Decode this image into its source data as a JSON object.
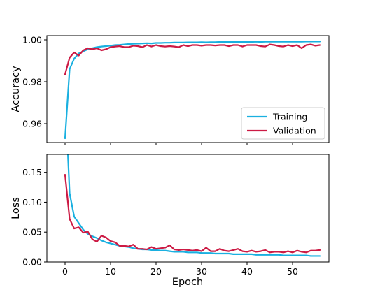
{
  "chart_data": [
    {
      "type": "line",
      "xlabel": "",
      "ylabel": "Accuracy",
      "xlim": [
        -4,
        58
      ],
      "ylim": [
        0.951,
        1.002
      ],
      "yticks": [
        0.96,
        0.98,
        1.0
      ],
      "ytick_labels": [
        "0.96",
        "0.98",
        "1.00"
      ],
      "xticks": [
        0,
        10,
        20,
        30,
        40,
        50
      ],
      "grid": false,
      "legend_position": "bottom-right",
      "legend": [
        "Training",
        "Validation"
      ],
      "series": [
        {
          "name": "Training",
          "color": "#1ab0e0",
          "x": [
            0,
            1,
            2,
            3,
            4,
            5,
            6,
            7,
            8,
            9,
            10,
            11,
            12,
            13,
            14,
            15,
            16,
            17,
            18,
            19,
            20,
            21,
            22,
            23,
            24,
            25,
            26,
            27,
            28,
            29,
            30,
            31,
            32,
            33,
            34,
            35,
            36,
            37,
            38,
            39,
            40,
            41,
            42,
            43,
            44,
            45,
            46,
            47,
            48,
            49,
            50,
            51,
            52,
            53,
            54,
            55,
            56
          ],
          "values": [
            0.953,
            0.986,
            0.991,
            0.9935,
            0.9945,
            0.9955,
            0.996,
            0.9965,
            0.9968,
            0.997,
            0.9972,
            0.9975,
            0.9976,
            0.9978,
            0.998,
            0.9981,
            0.9982,
            0.9983,
            0.9984,
            0.9983,
            0.9985,
            0.9985,
            0.9986,
            0.9986,
            0.9987,
            0.9987,
            0.9987,
            0.9988,
            0.9988,
            0.9988,
            0.9989,
            0.9988,
            0.9989,
            0.9989,
            0.999,
            0.999,
            0.999,
            0.999,
            0.999,
            0.999,
            0.999,
            0.999,
            0.9991,
            0.999,
            0.9991,
            0.9991,
            0.9991,
            0.9991,
            0.9991,
            0.9991,
            0.9991,
            0.9991,
            0.9991,
            0.9992,
            0.9992,
            0.9992,
            0.9992
          ]
        },
        {
          "name": "Validation",
          "color": "#cc1a44",
          "x": [
            0,
            1,
            2,
            3,
            4,
            5,
            6,
            7,
            8,
            9,
            10,
            11,
            12,
            13,
            14,
            15,
            16,
            17,
            18,
            19,
            20,
            21,
            22,
            23,
            24,
            25,
            26,
            27,
            28,
            29,
            30,
            31,
            32,
            33,
            34,
            35,
            36,
            37,
            38,
            39,
            40,
            41,
            42,
            43,
            44,
            45,
            46,
            47,
            48,
            49,
            50,
            51,
            52,
            53,
            54,
            55,
            56
          ],
          "values": [
            0.9835,
            0.9915,
            0.994,
            0.9925,
            0.995,
            0.996,
            0.9955,
            0.996,
            0.995,
            0.9955,
            0.9965,
            0.9968,
            0.997,
            0.9965,
            0.9965,
            0.9972,
            0.997,
            0.9965,
            0.9975,
            0.9968,
            0.9975,
            0.997,
            0.9968,
            0.997,
            0.9968,
            0.9965,
            0.9975,
            0.997,
            0.9975,
            0.9975,
            0.9972,
            0.9975,
            0.9975,
            0.9973,
            0.9975,
            0.9975,
            0.997,
            0.9975,
            0.9975,
            0.9968,
            0.9975,
            0.9975,
            0.9975,
            0.997,
            0.9968,
            0.9978,
            0.9975,
            0.997,
            0.9968,
            0.9975,
            0.997,
            0.9975,
            0.996,
            0.9975,
            0.9978,
            0.9972,
            0.9975
          ]
        }
      ]
    },
    {
      "type": "line",
      "xlabel": "Epoch",
      "ylabel": "Loss",
      "xlim": [
        -4,
        58
      ],
      "ylim": [
        0.0,
        0.18
      ],
      "yticks": [
        0.0,
        0.05,
        0.1,
        0.15
      ],
      "ytick_labels": [
        "0.00",
        "0.05",
        "0.10",
        "0.15"
      ],
      "xticks": [
        0,
        10,
        20,
        30,
        40,
        50
      ],
      "xtick_labels": [
        "0",
        "10",
        "20",
        "30",
        "40",
        "50"
      ],
      "grid": false,
      "series": [
        {
          "name": "Training",
          "color": "#1ab0e0",
          "x": [
            0.6,
            1,
            2,
            3,
            4,
            5,
            6,
            7,
            8,
            9,
            10,
            11,
            12,
            13,
            14,
            15,
            16,
            17,
            18,
            19,
            20,
            21,
            22,
            23,
            24,
            25,
            26,
            27,
            28,
            29,
            30,
            31,
            32,
            33,
            34,
            35,
            36,
            37,
            38,
            39,
            40,
            41,
            42,
            43,
            44,
            45,
            46,
            47,
            48,
            49,
            50,
            51,
            52,
            53,
            54,
            55,
            56
          ],
          "values": [
            0.185,
            0.115,
            0.076,
            0.065,
            0.054,
            0.047,
            0.043,
            0.04,
            0.036,
            0.033,
            0.031,
            0.029,
            0.027,
            0.026,
            0.025,
            0.023,
            0.022,
            0.021,
            0.021,
            0.02,
            0.02,
            0.019,
            0.019,
            0.018,
            0.017,
            0.017,
            0.017,
            0.016,
            0.016,
            0.016,
            0.015,
            0.015,
            0.015,
            0.014,
            0.014,
            0.014,
            0.014,
            0.013,
            0.013,
            0.013,
            0.013,
            0.013,
            0.012,
            0.012,
            0.012,
            0.012,
            0.012,
            0.012,
            0.011,
            0.011,
            0.011,
            0.011,
            0.011,
            0.011,
            0.01,
            0.01,
            0.01
          ]
        },
        {
          "name": "Validation",
          "color": "#cc1a44",
          "x": [
            0,
            1,
            2,
            3,
            4,
            5,
            6,
            7,
            8,
            9,
            10,
            11,
            12,
            13,
            14,
            15,
            16,
            17,
            18,
            19,
            20,
            21,
            22,
            23,
            24,
            25,
            26,
            27,
            28,
            29,
            30,
            31,
            32,
            33,
            34,
            35,
            36,
            37,
            38,
            39,
            40,
            41,
            42,
            43,
            44,
            45,
            46,
            47,
            48,
            49,
            50,
            51,
            52,
            53,
            54,
            55,
            56
          ],
          "values": [
            0.146,
            0.072,
            0.056,
            0.058,
            0.049,
            0.051,
            0.038,
            0.034,
            0.044,
            0.041,
            0.035,
            0.033,
            0.027,
            0.027,
            0.026,
            0.029,
            0.022,
            0.022,
            0.021,
            0.025,
            0.022,
            0.023,
            0.024,
            0.028,
            0.021,
            0.02,
            0.021,
            0.02,
            0.019,
            0.02,
            0.018,
            0.024,
            0.018,
            0.018,
            0.022,
            0.019,
            0.018,
            0.02,
            0.022,
            0.018,
            0.017,
            0.019,
            0.017,
            0.018,
            0.02,
            0.016,
            0.017,
            0.017,
            0.016,
            0.018,
            0.016,
            0.019,
            0.017,
            0.016,
            0.019,
            0.019,
            0.02
          ]
        }
      ]
    }
  ]
}
